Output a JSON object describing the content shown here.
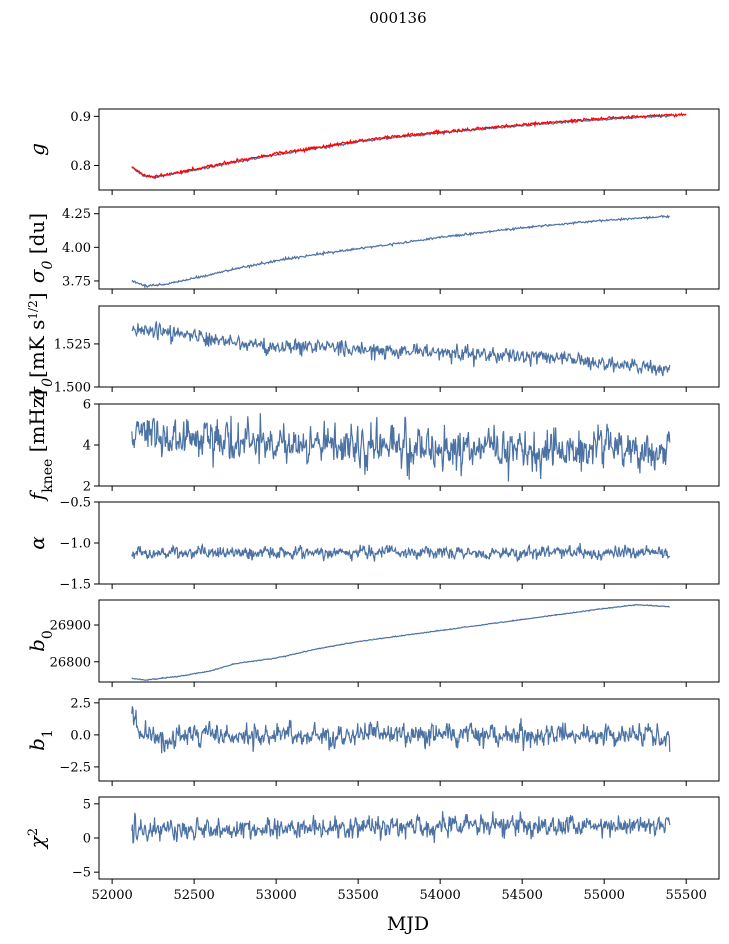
{
  "figure": {
    "title": "000136",
    "xlabel": "MJD"
  },
  "colors": {
    "series": "#4c72a4",
    "overlay": "#ff0000",
    "axes": "#000000"
  },
  "chart_data": {
    "type": "line",
    "title": "000136",
    "xlabel": "MJD",
    "xlim": [
      51920,
      55700
    ],
    "xticks": [
      52000,
      52500,
      53000,
      53500,
      54000,
      54500,
      55000,
      55500
    ],
    "xtick_labels": [
      "52000",
      "52500",
      "53000",
      "53500",
      "54000",
      "54500",
      "55000",
      "55500"
    ],
    "x_start": 52120,
    "x_end": 55400,
    "panels": [
      {
        "id": "g",
        "ylabel": "g",
        "ylim": [
          0.75,
          0.915
        ],
        "yticks": [
          0.8,
          0.9
        ],
        "ytick_labels": [
          "0.8",
          "0.9"
        ],
        "series": [
          {
            "kind": "smooth",
            "color_key": "series",
            "noise": 0.001,
            "points": [
              [
                52120,
                0.795
              ],
              [
                52200,
                0.778
              ],
              [
                52260,
                0.776
              ],
              [
                52500,
                0.79
              ],
              [
                52750,
                0.807
              ],
              [
                53000,
                0.822
              ],
              [
                53250,
                0.835
              ],
              [
                53500,
                0.848
              ],
              [
                53750,
                0.858
              ],
              [
                54000,
                0.866
              ],
              [
                54250,
                0.874
              ],
              [
                54500,
                0.881
              ],
              [
                54750,
                0.888
              ],
              [
                55000,
                0.894
              ],
              [
                55250,
                0.899
              ],
              [
                55400,
                0.901
              ]
            ]
          },
          {
            "kind": "smooth",
            "color_key": "overlay",
            "noise": 0.0015,
            "x_end": 55500,
            "points": [
              [
                52120,
                0.797
              ],
              [
                52200,
                0.779
              ],
              [
                52260,
                0.777
              ],
              [
                52500,
                0.792
              ],
              [
                52750,
                0.809
              ],
              [
                53000,
                0.824
              ],
              [
                53250,
                0.837
              ],
              [
                53500,
                0.85
              ],
              [
                53750,
                0.86
              ],
              [
                54000,
                0.868
              ],
              [
                54250,
                0.876
              ],
              [
                54500,
                0.883
              ],
              [
                54750,
                0.89
              ],
              [
                55000,
                0.896
              ],
              [
                55250,
                0.901
              ],
              [
                55500,
                0.904
              ]
            ]
          }
        ]
      },
      {
        "id": "sigma0-du",
        "ylabel": "σ₀ [du]",
        "ylim": [
          3.69,
          4.3
        ],
        "yticks": [
          3.75,
          4.0,
          4.25
        ],
        "ytick_labels": [
          "3.75",
          "4.00",
          "4.25"
        ],
        "series": [
          {
            "kind": "smooth",
            "color_key": "series",
            "noise": 0.004,
            "points": [
              [
                52120,
                3.75
              ],
              [
                52200,
                3.715
              ],
              [
                52300,
                3.72
              ],
              [
                52500,
                3.77
              ],
              [
                52750,
                3.84
              ],
              [
                53000,
                3.9
              ],
              [
                53250,
                3.95
              ],
              [
                53500,
                3.99
              ],
              [
                53750,
                4.03
              ],
              [
                54000,
                4.075
              ],
              [
                54250,
                4.11
              ],
              [
                54500,
                4.145
              ],
              [
                54750,
                4.175
              ],
              [
                55000,
                4.2
              ],
              [
                55250,
                4.22
              ],
              [
                55400,
                4.23
              ]
            ]
          }
        ]
      },
      {
        "id": "sigma0-mk",
        "ylabel": "σ₀[mK s^1/2]",
        "ylim": [
          1.5,
          1.547
        ],
        "yticks": [
          1.5,
          1.525
        ],
        "ytick_labels": [
          "1.500",
          "1.525"
        ],
        "series": [
          {
            "kind": "smooth",
            "color_key": "series",
            "noise": 0.0022,
            "points": [
              [
                52120,
                1.533
              ],
              [
                52300,
                1.533
              ],
              [
                52500,
                1.529
              ],
              [
                52750,
                1.526
              ],
              [
                53000,
                1.523
              ],
              [
                53250,
                1.524
              ],
              [
                53500,
                1.522
              ],
              [
                53750,
                1.521
              ],
              [
                54000,
                1.52
              ],
              [
                54250,
                1.519
              ],
              [
                54500,
                1.518
              ],
              [
                54750,
                1.517
              ],
              [
                55000,
                1.514
              ],
              [
                55250,
                1.512
              ],
              [
                55400,
                1.51
              ]
            ]
          }
        ]
      },
      {
        "id": "fknee",
        "ylabel": "f_knee [mHz]",
        "ylim": [
          2,
          6
        ],
        "yticks": [
          2,
          4,
          6
        ],
        "ytick_labels": [
          "2",
          "4",
          "6"
        ],
        "series": [
          {
            "kind": "noisy",
            "color_key": "series",
            "noise": 0.45,
            "points": [
              [
                52120,
                4.6
              ],
              [
                52500,
                4.35
              ],
              [
                53000,
                4.1
              ],
              [
                53500,
                3.95
              ],
              [
                54000,
                3.85
              ],
              [
                54500,
                3.8
              ],
              [
                55000,
                3.75
              ],
              [
                55400,
                3.7
              ]
            ]
          }
        ]
      },
      {
        "id": "alpha",
        "ylabel": "α",
        "ylim": [
          -1.5,
          -0.5
        ],
        "yticks": [
          -1.5,
          -1.0,
          -0.5
        ],
        "ytick_labels": [
          "−1.5",
          "−1.0",
          "−0.5"
        ],
        "series": [
          {
            "kind": "noisy",
            "color_key": "series",
            "noise": 0.035,
            "points": [
              [
                52120,
                -1.12
              ],
              [
                55400,
                -1.12
              ]
            ]
          }
        ]
      },
      {
        "id": "b0",
        "ylabel": "b₀",
        "ylim": [
          26745,
          26968
        ],
        "yticks": [
          26800,
          26900
        ],
        "ytick_labels": [
          "26800",
          "26900"
        ],
        "series": [
          {
            "kind": "smooth",
            "color_key": "series",
            "noise": 0.6,
            "points": [
              [
                52120,
                26755
              ],
              [
                52200,
                26750
              ],
              [
                52400,
                26760
              ],
              [
                52600,
                26775
              ],
              [
                52750,
                26795
              ],
              [
                53000,
                26810
              ],
              [
                53250,
                26835
              ],
              [
                53500,
                26855
              ],
              [
                53750,
                26870
              ],
              [
                54000,
                26885
              ],
              [
                54250,
                26900
              ],
              [
                54500,
                26915
              ],
              [
                54750,
                26930
              ],
              [
                55000,
                26945
              ],
              [
                55200,
                26955
              ],
              [
                55400,
                26950
              ]
            ]
          }
        ]
      },
      {
        "id": "b1",
        "ylabel": "b₁",
        "ylim": [
          -3.6,
          2.8
        ],
        "yticks": [
          -2.5,
          0.0,
          2.5
        ],
        "ytick_labels": [
          "−2.5",
          "0.0",
          "2.5"
        ],
        "series": [
          {
            "kind": "noisy",
            "color_key": "series",
            "noise": 0.42,
            "points": [
              [
                52120,
                2.0
              ],
              [
                52160,
                0.2
              ],
              [
                52300,
                -0.3
              ],
              [
                52500,
                -0.1
              ],
              [
                53000,
                -0.05
              ],
              [
                54000,
                0.0
              ],
              [
                55400,
                0.0
              ]
            ]
          }
        ]
      },
      {
        "id": "chi2",
        "ylabel": "χ²",
        "ylim": [
          -6,
          6
        ],
        "yticks": [
          -5,
          0,
          5
        ],
        "ytick_labels": [
          "−5",
          "0",
          "5"
        ],
        "series": [
          {
            "kind": "noisy",
            "color_key": "series",
            "noise": 0.75,
            "points": [
              [
                52120,
                1.0
              ],
              [
                53000,
                1.3
              ],
              [
                54000,
                1.8
              ],
              [
                55000,
                1.8
              ],
              [
                55400,
                2.0
              ]
            ]
          }
        ]
      }
    ]
  }
}
